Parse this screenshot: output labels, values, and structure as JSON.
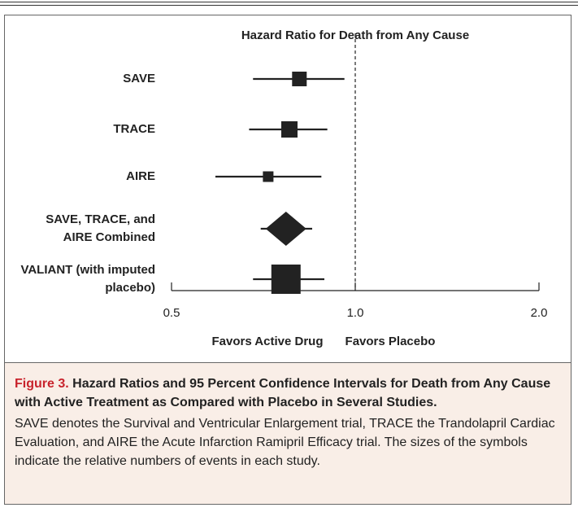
{
  "chart_data": {
    "type": "forest",
    "title": "Hazard Ratio for Death from Any Cause",
    "categories": [
      "SAVE",
      "TRACE",
      "AIRE",
      "SAVE, TRACE, and AIRE Combined",
      "VALIANT (with imputed placebo)"
    ],
    "values": [
      0.81,
      0.78,
      0.72,
      0.77,
      0.77
    ],
    "lower": [
      0.68,
      0.67,
      0.59,
      0.7,
      0.68
    ],
    "upper": [
      0.96,
      0.9,
      0.88,
      0.85,
      0.89
    ],
    "markers": [
      "square",
      "square",
      "square",
      "diamond",
      "square"
    ],
    "color": "#222222",
    "xscale": "log",
    "xlim": [
      0.5,
      2.0
    ],
    "xticks": [
      0.5,
      {
        "value": 1,
        "label": "1.0"
      },
      {
        "value": 2,
        "label": "2.0"
      }
    ],
    "reference_line": 1,
    "annotations": [
      "Favors Active Drug",
      "Favors Placebo"
    ]
  },
  "caption": {
    "label": "Figure 3.",
    "title": "Hazard Ratios and 95 Percent Confidence Intervals for Death from Any Cause with Active Treatment as Compared with Placebo in Several Studies.",
    "text": "SAVE denotes the Survival and Ventricular Enlargement trial, TRACE the Trandolapril Cardiac Evaluation, and AIRE the Acute Infarction Ramipril Efficacy trial. The sizes of the symbols indicate the relative numbers of events in each study."
  }
}
